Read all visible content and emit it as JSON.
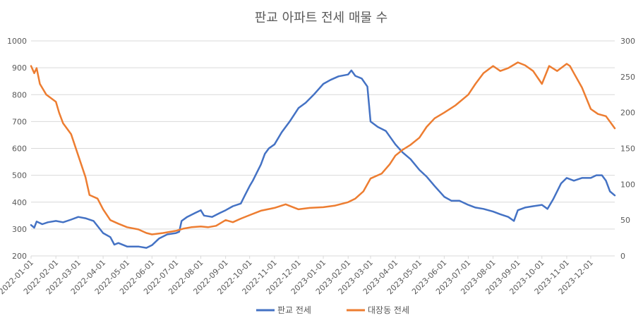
{
  "chart_data": {
    "type": "line",
    "title": "판교 아파트 전세 매물 수",
    "x_ticks": [
      "2022-01-01",
      "2022-02-01",
      "2022-03-01",
      "2022-04-01",
      "2022-05-01",
      "2022-06-01",
      "2022-07-01",
      "2022-08-01",
      "2022-09-01",
      "2022-10-01",
      "2022-11-01",
      "2022-12-01",
      "2023-01-01",
      "2023-02-01",
      "2023-03-01",
      "2023-04-01",
      "2023-05-01",
      "2023-06-01",
      "2023-07-01",
      "2023-08-01",
      "2023-09-01",
      "2023-10-01",
      "2023-11-01",
      "2023-12-01"
    ],
    "x_range": [
      "2022-01-01",
      "2023-12-31"
    ],
    "y_left": {
      "min": 200,
      "max": 1000,
      "ticks": [
        200,
        300,
        400,
        500,
        600,
        700,
        800,
        900,
        1000
      ]
    },
    "y_right": {
      "min": 0,
      "max": 300,
      "ticks": [
        0,
        50,
        100,
        150,
        200,
        250,
        300
      ]
    },
    "grid": true,
    "legend_position": "bottom",
    "series": [
      {
        "name": "판교 전세",
        "axis": "left",
        "color": "#4472C4",
        "points": [
          [
            "2022-01-01",
            315
          ],
          [
            "2022-01-05",
            305
          ],
          [
            "2022-01-08",
            328
          ],
          [
            "2022-01-15",
            318
          ],
          [
            "2022-01-22",
            325
          ],
          [
            "2022-02-01",
            330
          ],
          [
            "2022-02-10",
            325
          ],
          [
            "2022-02-20",
            335
          ],
          [
            "2022-03-01",
            345
          ],
          [
            "2022-03-10",
            340
          ],
          [
            "2022-03-20",
            330
          ],
          [
            "2022-04-01",
            285
          ],
          [
            "2022-04-10",
            270
          ],
          [
            "2022-04-15",
            242
          ],
          [
            "2022-04-20",
            248
          ],
          [
            "2022-05-01",
            235
          ],
          [
            "2022-05-15",
            235
          ],
          [
            "2022-05-25",
            230
          ],
          [
            "2022-06-01",
            240
          ],
          [
            "2022-06-10",
            265
          ],
          [
            "2022-06-20",
            280
          ],
          [
            "2022-07-01",
            285
          ],
          [
            "2022-07-05",
            290
          ],
          [
            "2022-07-08",
            330
          ],
          [
            "2022-07-15",
            345
          ],
          [
            "2022-07-25",
            360
          ],
          [
            "2022-08-01",
            370
          ],
          [
            "2022-08-05",
            350
          ],
          [
            "2022-08-15",
            345
          ],
          [
            "2022-08-25",
            360
          ],
          [
            "2022-09-01",
            370
          ],
          [
            "2022-09-10",
            385
          ],
          [
            "2022-09-20",
            395
          ],
          [
            "2022-09-25",
            425
          ],
          [
            "2022-10-01",
            460
          ],
          [
            "2022-10-05",
            480
          ],
          [
            "2022-10-10",
            510
          ],
          [
            "2022-10-15",
            540
          ],
          [
            "2022-10-20",
            580
          ],
          [
            "2022-10-25",
            600
          ],
          [
            "2022-11-01",
            615
          ],
          [
            "2022-11-10",
            660
          ],
          [
            "2022-11-20",
            700
          ],
          [
            "2022-12-01",
            750
          ],
          [
            "2022-12-10",
            770
          ],
          [
            "2022-12-20",
            800
          ],
          [
            "2023-01-01",
            840
          ],
          [
            "2023-01-10",
            855
          ],
          [
            "2023-01-20",
            868
          ],
          [
            "2023-02-01",
            875
          ],
          [
            "2023-02-05",
            890
          ],
          [
            "2023-02-10",
            870
          ],
          [
            "2023-02-18",
            860
          ],
          [
            "2023-02-25",
            830
          ],
          [
            "2023-03-01",
            700
          ],
          [
            "2023-03-10",
            680
          ],
          [
            "2023-03-20",
            665
          ],
          [
            "2023-04-01",
            615
          ],
          [
            "2023-04-10",
            585
          ],
          [
            "2023-04-20",
            560
          ],
          [
            "2023-05-01",
            520
          ],
          [
            "2023-05-10",
            495
          ],
          [
            "2023-05-20",
            460
          ],
          [
            "2023-06-01",
            420
          ],
          [
            "2023-06-10",
            405
          ],
          [
            "2023-06-20",
            405
          ],
          [
            "2023-07-01",
            390
          ],
          [
            "2023-07-10",
            380
          ],
          [
            "2023-07-20",
            375
          ],
          [
            "2023-08-01",
            365
          ],
          [
            "2023-08-10",
            355
          ],
          [
            "2023-08-20",
            345
          ],
          [
            "2023-08-27",
            330
          ],
          [
            "2023-09-01",
            370
          ],
          [
            "2023-09-10",
            380
          ],
          [
            "2023-09-20",
            385
          ],
          [
            "2023-10-01",
            390
          ],
          [
            "2023-10-08",
            375
          ],
          [
            "2023-10-15",
            410
          ],
          [
            "2023-10-25",
            470
          ],
          [
            "2023-11-01",
            490
          ],
          [
            "2023-11-10",
            480
          ],
          [
            "2023-11-20",
            490
          ],
          [
            "2023-12-01",
            490
          ],
          [
            "2023-12-08",
            500
          ],
          [
            "2023-12-15",
            500
          ],
          [
            "2023-12-20",
            480
          ],
          [
            "2023-12-25",
            440
          ],
          [
            "2023-12-31",
            425
          ]
        ]
      },
      {
        "name": "대장동 전세",
        "axis": "right",
        "color": "#ED7D31",
        "points": [
          [
            "2022-01-01",
            265
          ],
          [
            "2022-01-05",
            255
          ],
          [
            "2022-01-08",
            262
          ],
          [
            "2022-01-12",
            240
          ],
          [
            "2022-01-20",
            225
          ],
          [
            "2022-02-01",
            215
          ],
          [
            "2022-02-05",
            200
          ],
          [
            "2022-02-10",
            185
          ],
          [
            "2022-02-20",
            170
          ],
          [
            "2022-03-01",
            140
          ],
          [
            "2022-03-10",
            110
          ],
          [
            "2022-03-15",
            85
          ],
          [
            "2022-03-25",
            80
          ],
          [
            "2022-04-01",
            65
          ],
          [
            "2022-04-10",
            50
          ],
          [
            "2022-04-20",
            45
          ],
          [
            "2022-05-01",
            40
          ],
          [
            "2022-05-15",
            37
          ],
          [
            "2022-05-25",
            32
          ],
          [
            "2022-06-01",
            30
          ],
          [
            "2022-06-15",
            32
          ],
          [
            "2022-07-01",
            35
          ],
          [
            "2022-07-10",
            38
          ],
          [
            "2022-07-20",
            40
          ],
          [
            "2022-08-01",
            41
          ],
          [
            "2022-08-10",
            40
          ],
          [
            "2022-08-20",
            42
          ],
          [
            "2022-09-01",
            50
          ],
          [
            "2022-09-10",
            47
          ],
          [
            "2022-09-20",
            52
          ],
          [
            "2022-10-01",
            57
          ],
          [
            "2022-10-15",
            63
          ],
          [
            "2022-11-01",
            67
          ],
          [
            "2022-11-15",
            72
          ],
          [
            "2022-12-01",
            65
          ],
          [
            "2022-12-15",
            67
          ],
          [
            "2023-01-01",
            68
          ],
          [
            "2023-01-15",
            70
          ],
          [
            "2023-02-01",
            75
          ],
          [
            "2023-02-10",
            80
          ],
          [
            "2023-02-20",
            90
          ],
          [
            "2023-03-01",
            108
          ],
          [
            "2023-03-15",
            115
          ],
          [
            "2023-03-25",
            128
          ],
          [
            "2023-04-01",
            140
          ],
          [
            "2023-04-10",
            148
          ],
          [
            "2023-04-20",
            155
          ],
          [
            "2023-05-01",
            165
          ],
          [
            "2023-05-10",
            180
          ],
          [
            "2023-05-20",
            192
          ],
          [
            "2023-06-01",
            200
          ],
          [
            "2023-06-15",
            210
          ],
          [
            "2023-07-01",
            225
          ],
          [
            "2023-07-10",
            240
          ],
          [
            "2023-07-20",
            255
          ],
          [
            "2023-08-01",
            265
          ],
          [
            "2023-08-10",
            258
          ],
          [
            "2023-08-20",
            262
          ],
          [
            "2023-09-01",
            270
          ],
          [
            "2023-09-10",
            266
          ],
          [
            "2023-09-20",
            258
          ],
          [
            "2023-10-01",
            240
          ],
          [
            "2023-10-10",
            265
          ],
          [
            "2023-10-20",
            258
          ],
          [
            "2023-11-01",
            268
          ],
          [
            "2023-11-05",
            265
          ],
          [
            "2023-11-10",
            255
          ],
          [
            "2023-11-20",
            235
          ],
          [
            "2023-12-01",
            205
          ],
          [
            "2023-12-10",
            198
          ],
          [
            "2023-12-20",
            195
          ],
          [
            "2023-12-31",
            178
          ]
        ]
      }
    ]
  }
}
